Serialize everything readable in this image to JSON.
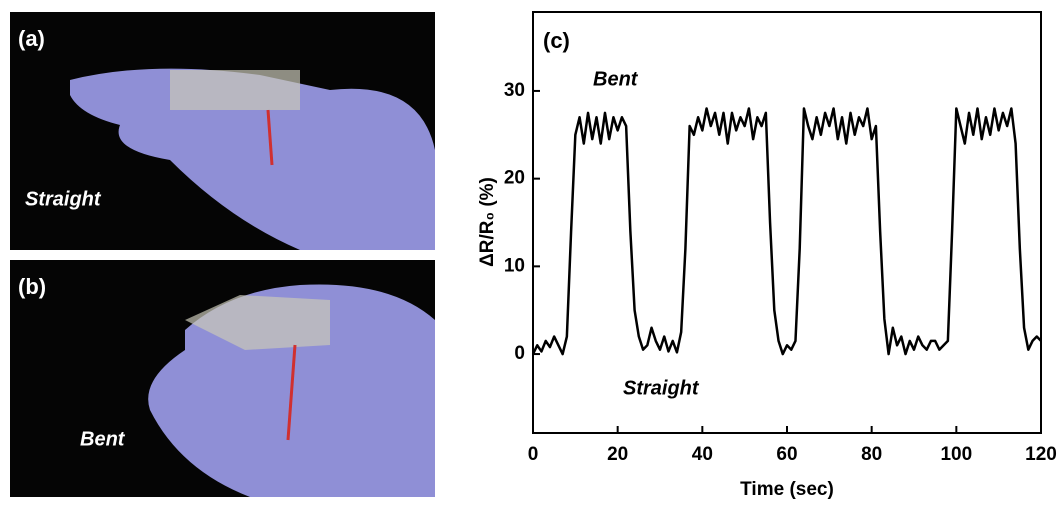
{
  "panels": [
    {
      "label": "(a)",
      "caption": "Straight"
    },
    {
      "label": "(b)",
      "caption": "Bent"
    }
  ],
  "chart_data": {
    "type": "line",
    "panel_label": "(c)",
    "x_label": "Time (sec)",
    "y_label": "ΔR/R₀ (%)",
    "annotations": [
      "Bent",
      "Straight"
    ],
    "xlim": [
      0,
      120
    ],
    "xticks": [
      0,
      20,
      40,
      60,
      80,
      100,
      120
    ],
    "ylim": [
      -9,
      39
    ],
    "yticks": [
      0,
      10,
      20,
      30
    ],
    "series": [
      {
        "color": "#000000",
        "x": [
          0,
          1,
          2,
          3,
          4,
          5,
          6,
          7,
          8,
          9,
          10,
          11,
          12,
          13,
          14,
          15,
          16,
          17,
          18,
          19,
          20,
          21,
          22,
          23,
          24,
          25,
          26,
          27,
          28,
          29,
          30,
          31,
          32,
          33,
          34,
          35,
          36,
          37,
          38,
          39,
          40,
          41,
          42,
          43,
          44,
          45,
          46,
          47,
          48,
          49,
          50,
          51,
          52,
          53,
          54,
          55,
          56,
          57,
          58,
          59,
          60,
          61,
          62,
          63,
          64,
          65,
          66,
          67,
          68,
          69,
          70,
          71,
          72,
          73,
          74,
          75,
          76,
          77,
          78,
          79,
          80,
          81,
          82,
          83,
          84,
          85,
          86,
          87,
          88,
          89,
          90,
          91,
          92,
          93,
          94,
          95,
          96,
          97,
          98,
          99,
          100,
          101,
          102,
          103,
          104,
          105,
          106,
          107,
          108,
          109,
          110,
          111,
          112,
          113,
          114,
          115,
          116,
          117,
          118,
          119,
          120
        ],
        "values": [
          0,
          1,
          0.3,
          1.5,
          0.8,
          2,
          1,
          0,
          2,
          14,
          25,
          27,
          24,
          27.5,
          24.5,
          27,
          24,
          27.5,
          24.5,
          27,
          25.5,
          27,
          26,
          14,
          5,
          2,
          0.5,
          1,
          3,
          1.5,
          0.5,
          2,
          0.3,
          1.5,
          0.2,
          2.5,
          12,
          26,
          25,
          27,
          25.5,
          28,
          26,
          27.5,
          25,
          27.5,
          24,
          27.5,
          25.5,
          27,
          26,
          28,
          24.5,
          27,
          26,
          27.5,
          15,
          5,
          1.5,
          0,
          1,
          0.5,
          1.5,
          12,
          28,
          26,
          24.5,
          27,
          25,
          27.5,
          26,
          28,
          24.5,
          27,
          24,
          27.5,
          25,
          27,
          26,
          28,
          24.5,
          26,
          14,
          4,
          0,
          3,
          1,
          2,
          0,
          1.5,
          0.5,
          2,
          1,
          0.5,
          1.5,
          1.5,
          0.5,
          1,
          1.5,
          14,
          28,
          26,
          24,
          27.5,
          25,
          28,
          24.5,
          27,
          25,
          28,
          25.5,
          27.5,
          26,
          28,
          24,
          12,
          3,
          0.5,
          1.5,
          2,
          1.5
        ]
      }
    ]
  }
}
